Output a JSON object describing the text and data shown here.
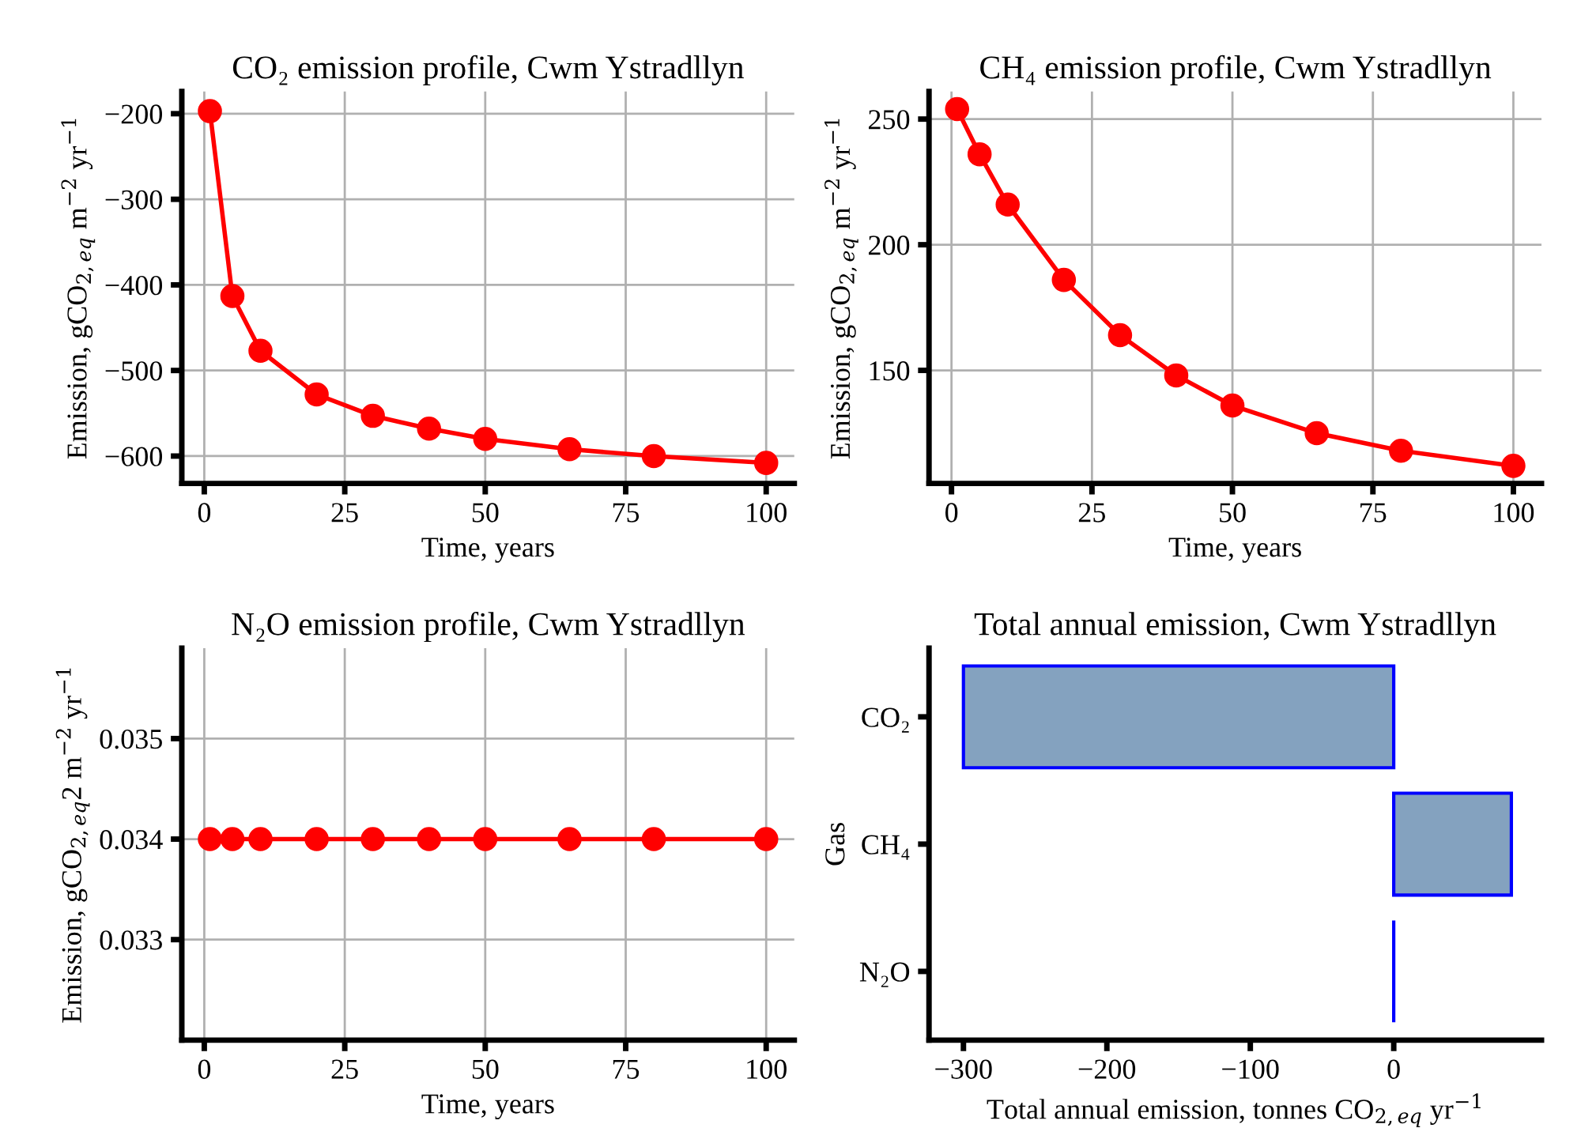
{
  "chart_data": [
    {
      "type": "line",
      "title": "CO₂ emission profile, Cwm Ystradllyn",
      "xlabel": "Time, years",
      "ylabel": "Emission, gCO$_{2,eq}$ m$^{−2}$ yr$^{−1}$",
      "x": [
        1,
        5,
        10,
        20,
        30,
        40,
        50,
        65,
        80,
        100
      ],
      "series": [
        {
          "color": "#ff0000",
          "values": [
            -197,
            -413,
            -477,
            -528,
            -553,
            -568,
            -580,
            -592,
            -600,
            -608
          ]
        }
      ],
      "xlim": [
        -4,
        105
      ],
      "xticks": [
        0,
        25,
        50,
        75,
        100
      ],
      "ylim": [
        -632,
        -174
      ],
      "yticks": [
        {
          "value": -600,
          "label": "−600"
        },
        {
          "value": -500,
          "label": "−500"
        },
        {
          "value": -400,
          "label": "−400"
        },
        {
          "value": -300,
          "label": "−300"
        },
        {
          "value": -200,
          "label": "−200"
        }
      ],
      "grid": true,
      "marker": "circle",
      "line_style": "solid"
    },
    {
      "type": "line",
      "title": "CH₄ emission profile, Cwm Ystradllyn",
      "xlabel": "Time, years",
      "ylabel": "Emission, gCO$_{2,eq}$ m$^{−2}$ yr$^{−1}$",
      "x": [
        1,
        5,
        10,
        20,
        30,
        40,
        50,
        65,
        80,
        100
      ],
      "series": [
        {
          "color": "#ff0000",
          "values": [
            254,
            236,
            216,
            186,
            164,
            148,
            136,
            125,
            118,
            112
          ]
        }
      ],
      "xlim": [
        -4,
        105
      ],
      "xticks": [
        0,
        25,
        50,
        75,
        100
      ],
      "ylim": [
        105,
        261
      ],
      "yticks": [
        150,
        200,
        250
      ],
      "grid": true,
      "marker": "circle",
      "line_style": "solid"
    },
    {
      "type": "line",
      "title": "N₂O emission profile, Cwm Ystradllyn",
      "xlabel": "Time, years",
      "ylabel": "Emission, gCO$_{2,eq}$2 m$^{−2}$ yr$^{−1}$",
      "x": [
        1,
        5,
        10,
        20,
        30,
        40,
        50,
        65,
        80,
        100
      ],
      "series": [
        {
          "color": "#ff0000",
          "values": [
            0.034,
            0.034,
            0.034,
            0.034,
            0.034,
            0.034,
            0.034,
            0.034,
            0.034,
            0.034
          ]
        }
      ],
      "xlim": [
        -4,
        105
      ],
      "xticks": [
        0,
        25,
        50,
        75,
        100
      ],
      "ylim": [
        0.032,
        0.0359
      ],
      "yticks": [
        0.033,
        0.034,
        0.035
      ],
      "grid": true,
      "marker": "circle",
      "line_style": "solid"
    },
    {
      "type": "bar",
      "orientation": "horizontal",
      "title": "Total annual emission, Cwm Ystradllyn",
      "xlabel": "Total annual emission, tonnes CO$_{2,eq}$ yr$^{−1}$",
      "ylabel": "Gas",
      "categories": [
        "CO₂",
        "CH₄",
        "N₂O"
      ],
      "series": [
        {
          "colors": [
            "#84a2bf",
            "#84a2bf",
            "#0000ff"
          ],
          "values": [
            -300,
            82,
            0
          ]
        }
      ],
      "xlim": [
        -324,
        103
      ],
      "xticks": [
        {
          "value": -300,
          "label": "−300"
        },
        {
          "value": -200,
          "label": "−200"
        },
        {
          "value": -100,
          "label": "−100"
        },
        0
      ],
      "grid": false
    }
  ]
}
